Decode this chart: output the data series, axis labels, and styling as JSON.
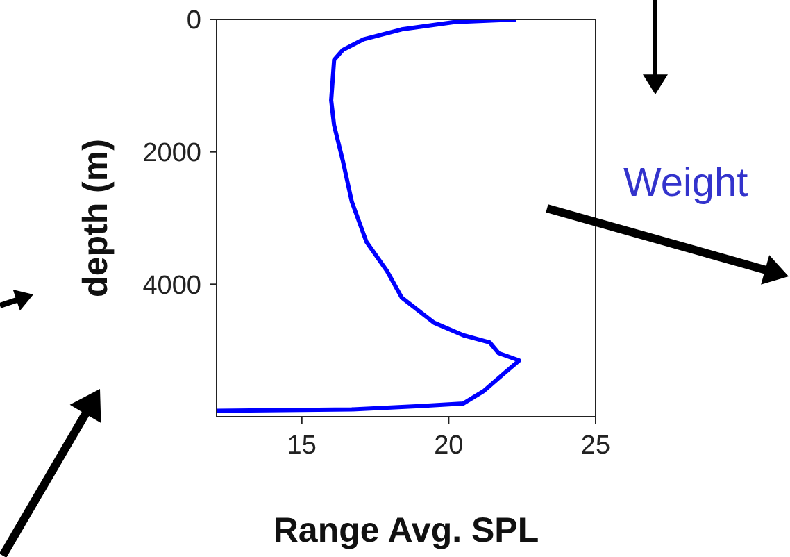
{
  "chart_data": {
    "type": "line",
    "xlabel": "Range Avg. SPL",
    "ylabel": "depth (m)",
    "annotations": [
      "Weight"
    ],
    "xlim": [
      12.1,
      25
    ],
    "xticks": [
      15,
      20,
      25
    ],
    "ylim": [
      6000,
      0
    ],
    "yticks": [
      0,
      2000,
      4000
    ],
    "marker": "none",
    "line_style": "solid",
    "series": [
      {
        "color": "#0000ff",
        "x": [
          22.3,
          20.2,
          18.4,
          17.1,
          16.4,
          16.1,
          16.0,
          16.1,
          16.4,
          16.7,
          17.2,
          17.9,
          18.4,
          19.5,
          20.5,
          21.4,
          21.7,
          22.4,
          21.9,
          21.2,
          20.5,
          19.0,
          16.7,
          12.1
        ],
        "values": [
          0,
          40,
          150,
          300,
          460,
          610,
          1220,
          1600,
          2140,
          2750,
          3360,
          3800,
          4200,
          4580,
          4770,
          4880,
          5040,
          5150,
          5340,
          5610,
          5800,
          5840,
          5890,
          5910
        ]
      }
    ]
  }
}
